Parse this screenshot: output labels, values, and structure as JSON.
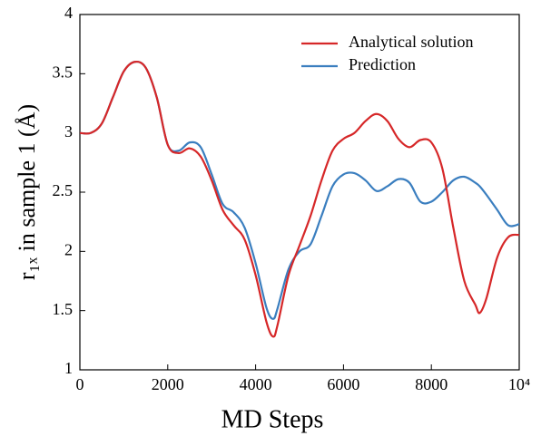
{
  "chart_data": {
    "type": "line",
    "x_label": "MD Steps",
    "y_label": "r₁ₓ in sample 1 (Å)",
    "x": [
      0,
      250,
      500,
      750,
      1000,
      1250,
      1500,
      1750,
      2000,
      2250,
      2500,
      2750,
      3000,
      3250,
      3500,
      3750,
      4000,
      4250,
      4400,
      4500,
      4750,
      5000,
      5250,
      5500,
      5750,
      6000,
      6250,
      6500,
      6750,
      7000,
      7250,
      7500,
      7750,
      8000,
      8250,
      8500,
      8750,
      9000,
      9100,
      9250,
      9500,
      9750,
      10000
    ],
    "series": [
      {
        "name": "Analytical solution",
        "color": "#d62728",
        "values": [
          3.0,
          3.0,
          3.08,
          3.3,
          3.52,
          3.6,
          3.55,
          3.3,
          2.9,
          2.83,
          2.87,
          2.8,
          2.6,
          2.35,
          2.22,
          2.1,
          1.8,
          1.4,
          1.28,
          1.38,
          1.8,
          2.05,
          2.3,
          2.6,
          2.85,
          2.95,
          3.0,
          3.1,
          3.16,
          3.1,
          2.95,
          2.88,
          2.94,
          2.92,
          2.7,
          2.2,
          1.75,
          1.55,
          1.48,
          1.6,
          1.95,
          2.12,
          2.14
        ]
      },
      {
        "name": "Prediction",
        "color": "#3a7ebf",
        "values": [
          3.0,
          3.0,
          3.08,
          3.3,
          3.52,
          3.6,
          3.55,
          3.3,
          2.9,
          2.85,
          2.92,
          2.88,
          2.65,
          2.4,
          2.33,
          2.2,
          1.9,
          1.52,
          1.43,
          1.52,
          1.85,
          2.0,
          2.06,
          2.3,
          2.55,
          2.65,
          2.66,
          2.6,
          2.51,
          2.55,
          2.61,
          2.58,
          2.42,
          2.42,
          2.5,
          2.6,
          2.63,
          2.58,
          2.55,
          2.48,
          2.35,
          2.22,
          2.23
        ]
      }
    ],
    "xlim": [
      0,
      10000
    ],
    "xticks": [
      0,
      2000,
      4000,
      6000,
      8000,
      {
        "value": 10000,
        "label": "10⁴"
      }
    ],
    "ylim": [
      1,
      4
    ],
    "yticks": [
      1,
      1.5,
      2,
      2.5,
      3,
      3.5,
      4
    ],
    "legend": "top-right"
  }
}
